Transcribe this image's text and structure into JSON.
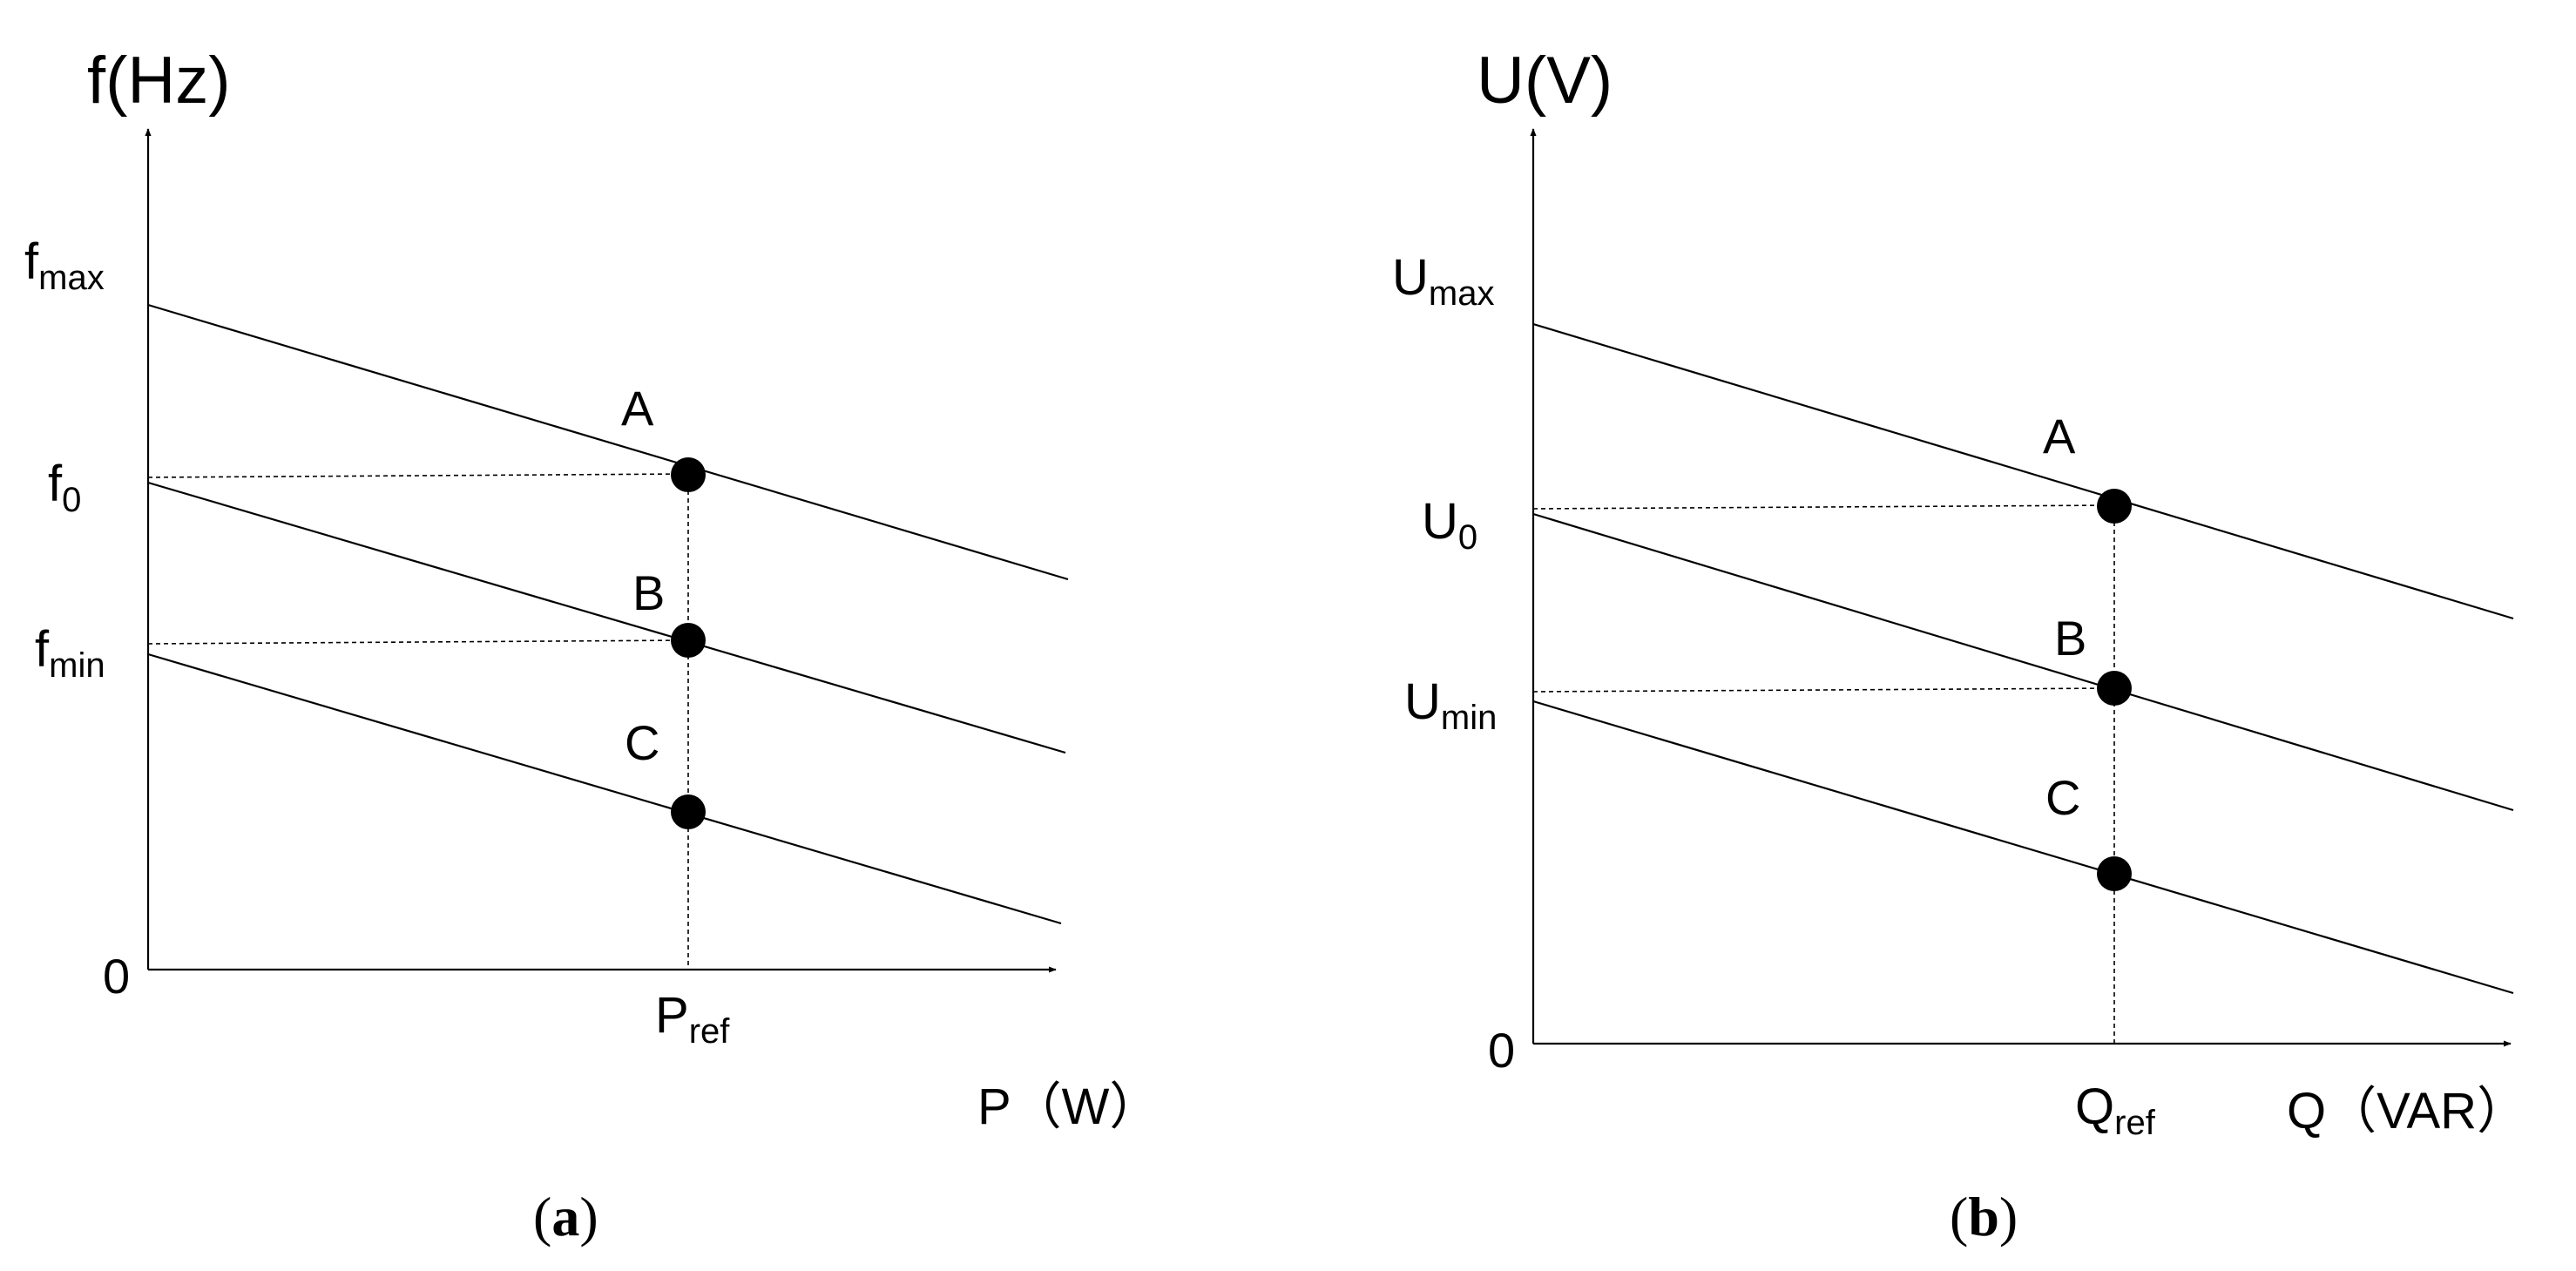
{
  "panel_a": {
    "y_axis_label": "f(Hz)",
    "x_axis_label": "P（W）",
    "origin_label": "0",
    "y_ticks": {
      "max": {
        "base": "f",
        "sub": "max"
      },
      "nominal": {
        "base": "f",
        "sub": "0"
      },
      "min": {
        "base": "f",
        "sub": "min"
      }
    },
    "x_tick": {
      "base": "P",
      "sub": "ref"
    },
    "points": [
      "A",
      "B",
      "C"
    ],
    "caption": {
      "open": "(",
      "letter": "a",
      "close": ")"
    }
  },
  "panel_b": {
    "y_axis_label": "U(V)",
    "x_axis_label": "Q（VAR）",
    "origin_label": "0",
    "y_ticks": {
      "max": {
        "base": "U",
        "sub": "max"
      },
      "nominal": {
        "base": "U",
        "sub": "0"
      },
      "min": {
        "base": "U",
        "sub": "min"
      }
    },
    "x_tick": {
      "base": "Q",
      "sub": "ref"
    },
    "points": [
      "A",
      "B",
      "C"
    ],
    "caption": {
      "open": "(",
      "letter": "b",
      "close": ")"
    }
  }
}
